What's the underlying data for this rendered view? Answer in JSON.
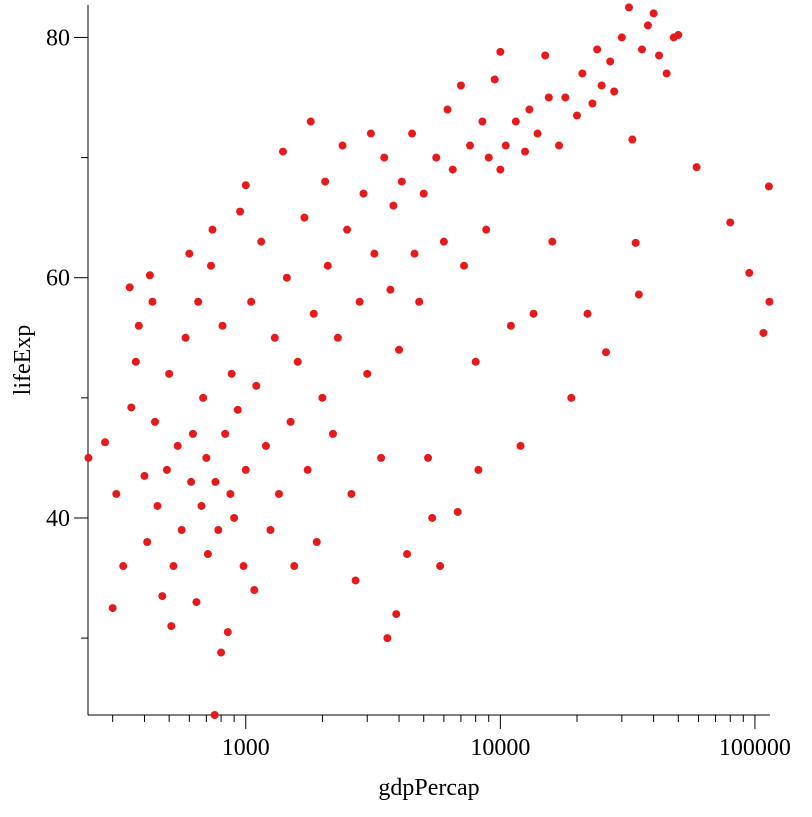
{
  "chart_data": {
    "type": "scatter",
    "x_label": "gdpPercap",
    "y_label": "lifeExp",
    "color": "#e41a1c",
    "xscale": "log",
    "xlim": [
      240,
      114600
    ],
    "ylim": [
      23.6,
      82.7
    ],
    "xticks": [
      1000,
      10000,
      100000
    ],
    "xminor_ticks": [
      300,
      400,
      500,
      600,
      700,
      800,
      900,
      2000,
      3000,
      4000,
      5000,
      6000,
      7000,
      8000,
      9000,
      20000,
      30000,
      40000,
      50000,
      60000,
      70000,
      80000,
      90000
    ],
    "yticks": [
      40,
      60,
      80
    ],
    "yminor_ticks": [
      30,
      50,
      70
    ],
    "x": [
      241,
      280,
      300,
      310,
      330,
      350,
      355,
      370,
      380,
      400,
      410,
      420,
      430,
      440,
      450,
      470,
      490,
      500,
      510,
      520,
      540,
      560,
      580,
      600,
      610,
      620,
      640,
      650,
      670,
      680,
      700,
      710,
      730,
      740,
      755,
      760,
      780,
      800,
      810,
      830,
      850,
      870,
      880,
      900,
      930,
      950,
      980,
      1000,
      1000,
      1050,
      1080,
      1100,
      1150,
      1200,
      1250,
      1300,
      1350,
      1400,
      1450,
      1500,
      1550,
      1600,
      1700,
      1750,
      1800,
      1850,
      1900,
      2000,
      2050,
      2100,
      2200,
      2300,
      2400,
      2500,
      2600,
      2700,
      2800,
      2900,
      3000,
      3100,
      3200,
      3400,
      3500,
      3600,
      3700,
      3800,
      3900,
      4000,
      4100,
      4300,
      4500,
      4600,
      4800,
      5000,
      5200,
      5400,
      5600,
      5800,
      6000,
      6200,
      6500,
      6800,
      7000,
      7200,
      7600,
      8000,
      8200,
      8500,
      8800,
      9000,
      9500,
      10000,
      10000,
      10500,
      11000,
      11500,
      12000,
      12500,
      13000,
      13500,
      14000,
      15000,
      15500,
      16000,
      17000,
      18000,
      19000,
      20000,
      21000,
      22000,
      23000,
      24000,
      25000,
      26000,
      27000,
      28000,
      30000,
      32000,
      33000,
      34000,
      35000,
      36000,
      38000,
      40000,
      42000,
      45000,
      48000,
      50000,
      59000,
      80000,
      95000,
      108000,
      113500,
      114000
    ],
    "values": [
      45,
      46.3,
      32.5,
      42,
      36,
      59.2,
      49.2,
      53,
      56,
      43.5,
      38,
      60.2,
      58,
      48,
      41,
      33.5,
      44,
      52,
      31,
      36,
      46,
      39,
      55,
      62,
      43,
      47,
      33,
      58,
      41,
      50,
      45,
      37,
      61,
      64,
      23.6,
      43,
      39,
      28.8,
      56,
      47,
      30.5,
      42,
      52,
      40,
      49,
      65.5,
      36,
      67.7,
      44,
      58,
      34,
      51,
      63,
      46,
      39,
      55,
      42,
      70.5,
      60,
      48,
      36,
      53,
      65,
      44,
      73,
      57,
      38,
      50,
      68,
      61,
      47,
      55,
      71,
      64,
      42,
      34.8,
      58,
      67,
      52,
      72,
      62,
      45,
      70,
      30,
      59,
      66,
      32,
      54,
      68,
      37,
      72,
      62,
      58,
      67,
      45,
      40,
      70,
      36,
      63,
      74,
      69,
      40.5,
      76,
      61,
      71,
      53,
      44,
      73,
      64,
      70,
      76.5,
      78.8,
      69,
      71,
      56,
      73,
      46,
      70.5,
      74,
      57,
      72,
      78.5,
      75,
      63,
      71,
      75,
      50,
      73.5,
      77,
      57,
      74.5,
      79,
      76,
      53.8,
      78,
      75.5,
      80,
      82.5,
      71.5,
      62.9,
      58.6,
      79,
      81,
      82,
      78.5,
      77,
      80,
      80.2,
      69.2,
      64.6,
      60.4,
      55.4,
      67.6,
      58
    ]
  }
}
